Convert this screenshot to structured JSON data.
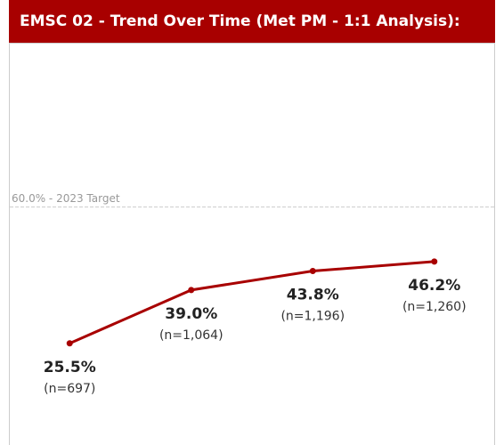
{
  "chart_data": {
    "type": "line",
    "title": "EMSC 02 - Trend Over Time (Met PM - 1:1 Analysis):",
    "categories": [
      null,
      null,
      null,
      null
    ],
    "series": [
      {
        "name": null,
        "color": "#a80000",
        "values": [
          25.5,
          39.0,
          43.8,
          46.2
        ],
        "value_labels": [
          "25.5%",
          "39.0%",
          "43.8%",
          "46.2%"
        ],
        "n_labels": [
          "(n=697)",
          "(n=1,064)",
          "(n=1,196)",
          "(n=1,260)"
        ]
      }
    ],
    "ylim": [
      0,
      100
    ],
    "reference_line": {
      "value": 60,
      "label": "60.0% - 2023 Target"
    }
  }
}
